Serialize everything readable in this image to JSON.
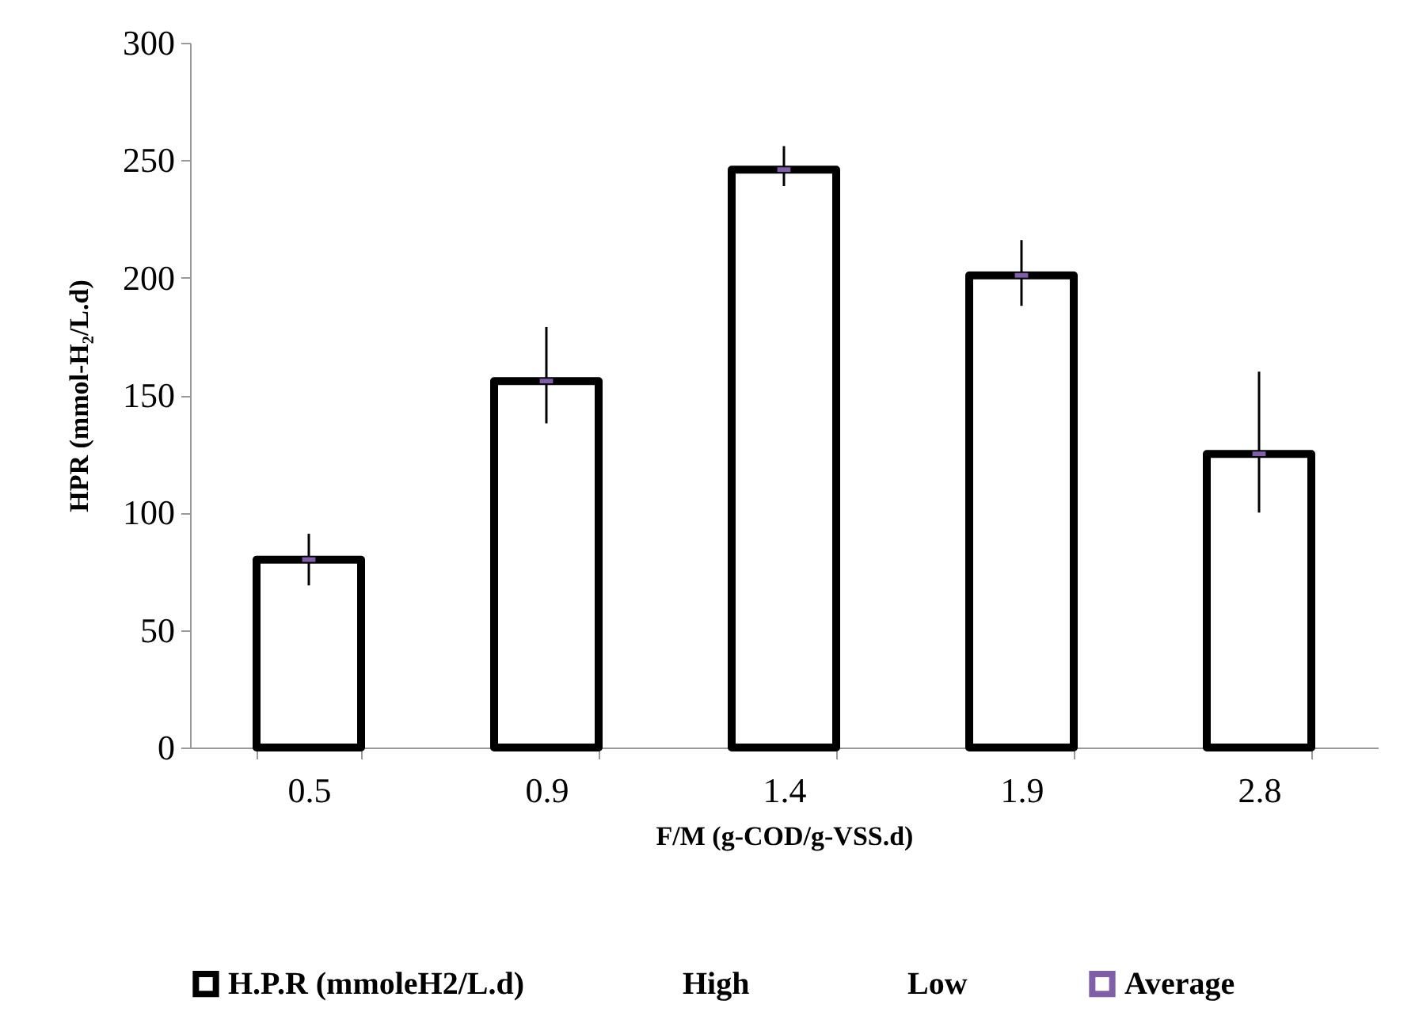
{
  "chart_data": {
    "type": "bar",
    "xlabel": "F/M (g-COD/g-VSS.d)",
    "ylabel": "HPR (mmol-H₂/L.d)",
    "categories": [
      "0.5",
      "0.9",
      "1.4",
      "1.9",
      "2.8"
    ],
    "ylim": [
      0,
      300
    ],
    "yticks": [
      0,
      50,
      100,
      150,
      200,
      250,
      300
    ],
    "legend": "bottom",
    "annotations": [
      "High",
      "Low"
    ],
    "series": [
      {
        "name": "H.P.R (mmoleH2/L.d)",
        "color": "#000000",
        "values": [
          80,
          156,
          246,
          201,
          125
        ],
        "errors": [
          [
            69,
            91
          ],
          [
            138,
            179
          ],
          [
            239,
            256
          ],
          [
            188,
            216
          ],
          [
            100,
            160
          ]
        ]
      },
      {
        "name": "Average",
        "type": "scatter",
        "marker": "square",
        "color": "#7f60a8",
        "values": [
          80,
          156,
          246,
          201,
          125
        ]
      }
    ]
  }
}
